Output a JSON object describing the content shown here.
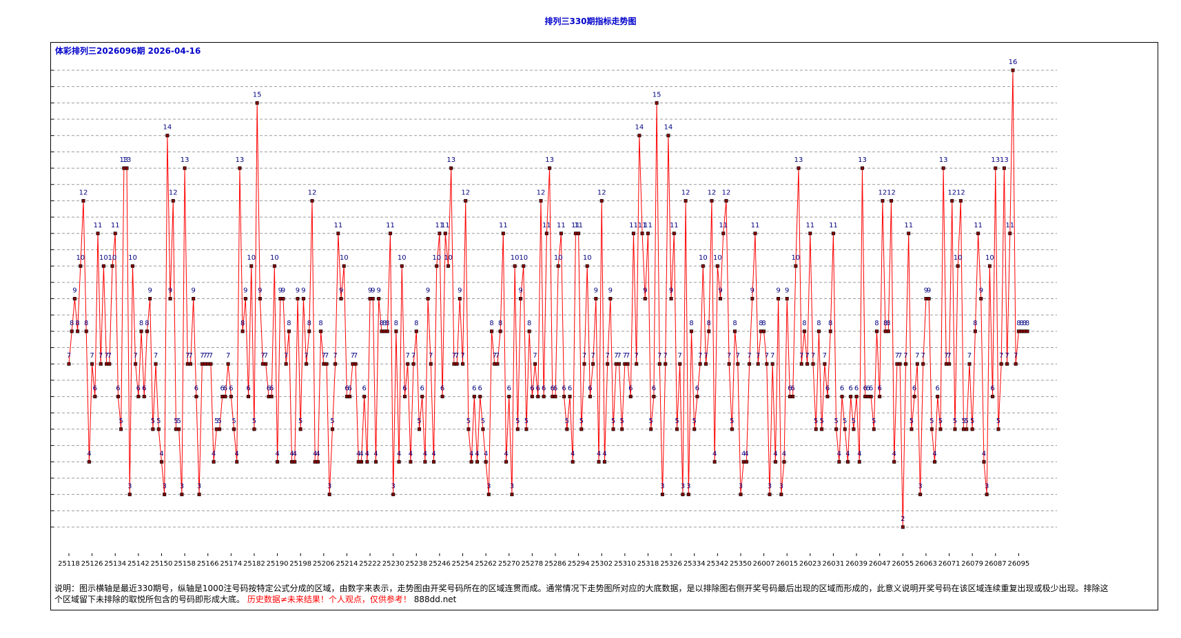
{
  "page": {
    "title": "排列三330期指标走势图",
    "subtitle": "体彩排列三2026096期  2026-04-16",
    "note_main": "说明：图示横轴是最近330期号，纵轴是1000注号码按特定公式分成的区域，由数字来表示，走势图由开奖号码所在的区域连贯而成。通常情况下走势图所对应的大底数据，是以排除图右侧开奖号码最后出现的区域而形成的，此意义说明开奖号码在该区域连续重复出现或极少出现。排除这个区域留下未排除的取悦所包含的号码即形成大底。",
    "note_warning": "历史数据≠未来结果！个人观点，仅供参考！",
    "note_site": "888dd.net"
  },
  "colors": {
    "line": "#ff0000",
    "marker_fill": "#800000",
    "label": "#000080",
    "title": "#0000cc",
    "grid": "#999999"
  },
  "chart_data": {
    "type": "line",
    "title": "排列三330期指标走势图",
    "ylim": [
      2,
      16
    ],
    "yticks": [
      "2",
      "2.5",
      "3",
      "3.5",
      "4",
      "4.5",
      "5",
      "5.5",
      "6",
      "6.5",
      "7",
      "7.5",
      "8",
      "8.5",
      "9",
      "9.5",
      "10",
      "10.5",
      "11",
      "11.5",
      "12",
      "12.5",
      "13",
      "13.5",
      "14",
      "14.5",
      "15",
      "15.5",
      "16"
    ],
    "grid": true,
    "x_tick_labels": [
      "25118",
      "25126",
      "25134",
      "25142",
      "25150",
      "25158",
      "25166",
      "25174",
      "25182",
      "25190",
      "25198",
      "25206",
      "25214",
      "25222",
      "25230",
      "25238",
      "25246",
      "25254",
      "25262",
      "25270",
      "25278",
      "25286",
      "25294",
      "25302",
      "25310",
      "25318",
      "25326",
      "25334",
      "25342",
      "25350",
      "26007",
      "26015",
      "26023",
      "26031",
      "26039",
      "26047",
      "26055",
      "26063",
      "26071",
      "26079",
      "26087",
      "26095"
    ],
    "series": [
      {
        "values": [
          7,
          8,
          9,
          8,
          10,
          12,
          8,
          4,
          7,
          6,
          11,
          7,
          10,
          7,
          7,
          10,
          11,
          6,
          5,
          13,
          13,
          3,
          10,
          7,
          6,
          8,
          6,
          8,
          9,
          5,
          7,
          5,
          4,
          3,
          14,
          9,
          12,
          5,
          5,
          3,
          13,
          7,
          7,
          9,
          6,
          3,
          7,
          7,
          7,
          7,
          4,
          5,
          5,
          6,
          6,
          7,
          6,
          5,
          4,
          13,
          8,
          9,
          6,
          10,
          5,
          15,
          9,
          7,
          7,
          6,
          6,
          10,
          4,
          9,
          9,
          7,
          8,
          4,
          4,
          9,
          5,
          9,
          7,
          8,
          12,
          4,
          4,
          8,
          7,
          7,
          3,
          5,
          7,
          11,
          9,
          10,
          6,
          6,
          7,
          7,
          4,
          4,
          6,
          4,
          9,
          9,
          4,
          9,
          8,
          8,
          8,
          11,
          3,
          8,
          4,
          10,
          6,
          7,
          4,
          7,
          8,
          5,
          6,
          4,
          9,
          7,
          4,
          10,
          11,
          6,
          11,
          10,
          13,
          7,
          7,
          9,
          7,
          12,
          5,
          4,
          6,
          4,
          6,
          5,
          4,
          3,
          8,
          7,
          7,
          8,
          11,
          4,
          6,
          3,
          10,
          5,
          9,
          10,
          5,
          8,
          6,
          7,
          6,
          12,
          6,
          11,
          13,
          6,
          6,
          10,
          11,
          6,
          5,
          6,
          4,
          11,
          11,
          5,
          7,
          10,
          6,
          7,
          9,
          4,
          12,
          4,
          7,
          9,
          5,
          7,
          7,
          5,
          7,
          7,
          6,
          11,
          7,
          14,
          11,
          9,
          11,
          5,
          6,
          15,
          7,
          3,
          7,
          14,
          9,
          11,
          5,
          7,
          3,
          12,
          3,
          8,
          5,
          6,
          7,
          10,
          7,
          8,
          12,
          4,
          10,
          9,
          11,
          12,
          7,
          5,
          8,
          7,
          3,
          4,
          4,
          7,
          9,
          11,
          7,
          8,
          8,
          7,
          3,
          7,
          4,
          9,
          3,
          4,
          9,
          6,
          6,
          10,
          13,
          7,
          8,
          7,
          11,
          7,
          5,
          8,
          5,
          7,
          6,
          8,
          11,
          5,
          4,
          6,
          5,
          4,
          6,
          5,
          6,
          4,
          13,
          6,
          6,
          6,
          5,
          8,
          6,
          12,
          8,
          8,
          12,
          4,
          7,
          7,
          2,
          7,
          11,
          5,
          6,
          7,
          3,
          7,
          9,
          9,
          5,
          4,
          6,
          5,
          13,
          7,
          7,
          12,
          5,
          10,
          12,
          5,
          5,
          7,
          5,
          8,
          11,
          9,
          4,
          3,
          10,
          6,
          13,
          5,
          7,
          13,
          7,
          11,
          16,
          7,
          8,
          8,
          8,
          8
        ]
      }
    ]
  }
}
